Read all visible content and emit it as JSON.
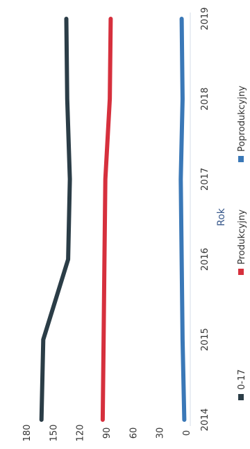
{
  "chart_data": {
    "type": "line",
    "title": "",
    "xlabel": "Rok",
    "ylabel": "",
    "categories": [
      "2014",
      "2015",
      "2016",
      "2017",
      "2018",
      "2019"
    ],
    "ylim": [
      0,
      180
    ],
    "yticks": [
      "0",
      "30",
      "60",
      "90",
      "120",
      "150",
      "180"
    ],
    "grid": false,
    "legend_position": "bottom",
    "series": [
      {
        "name": "0-17",
        "color": "#2b3d47",
        "values": [
          163,
          161,
          133,
          131,
          134,
          135
        ]
      },
      {
        "name": "Produkcyjny",
        "color": "#d6303d",
        "values": [
          94,
          93,
          92,
          91,
          86,
          85
        ]
      },
      {
        "name": "Poprodukcyjny",
        "color": "#3a78b7",
        "values": [
          2,
          4,
          5,
          6,
          4,
          5
        ]
      }
    ]
  }
}
